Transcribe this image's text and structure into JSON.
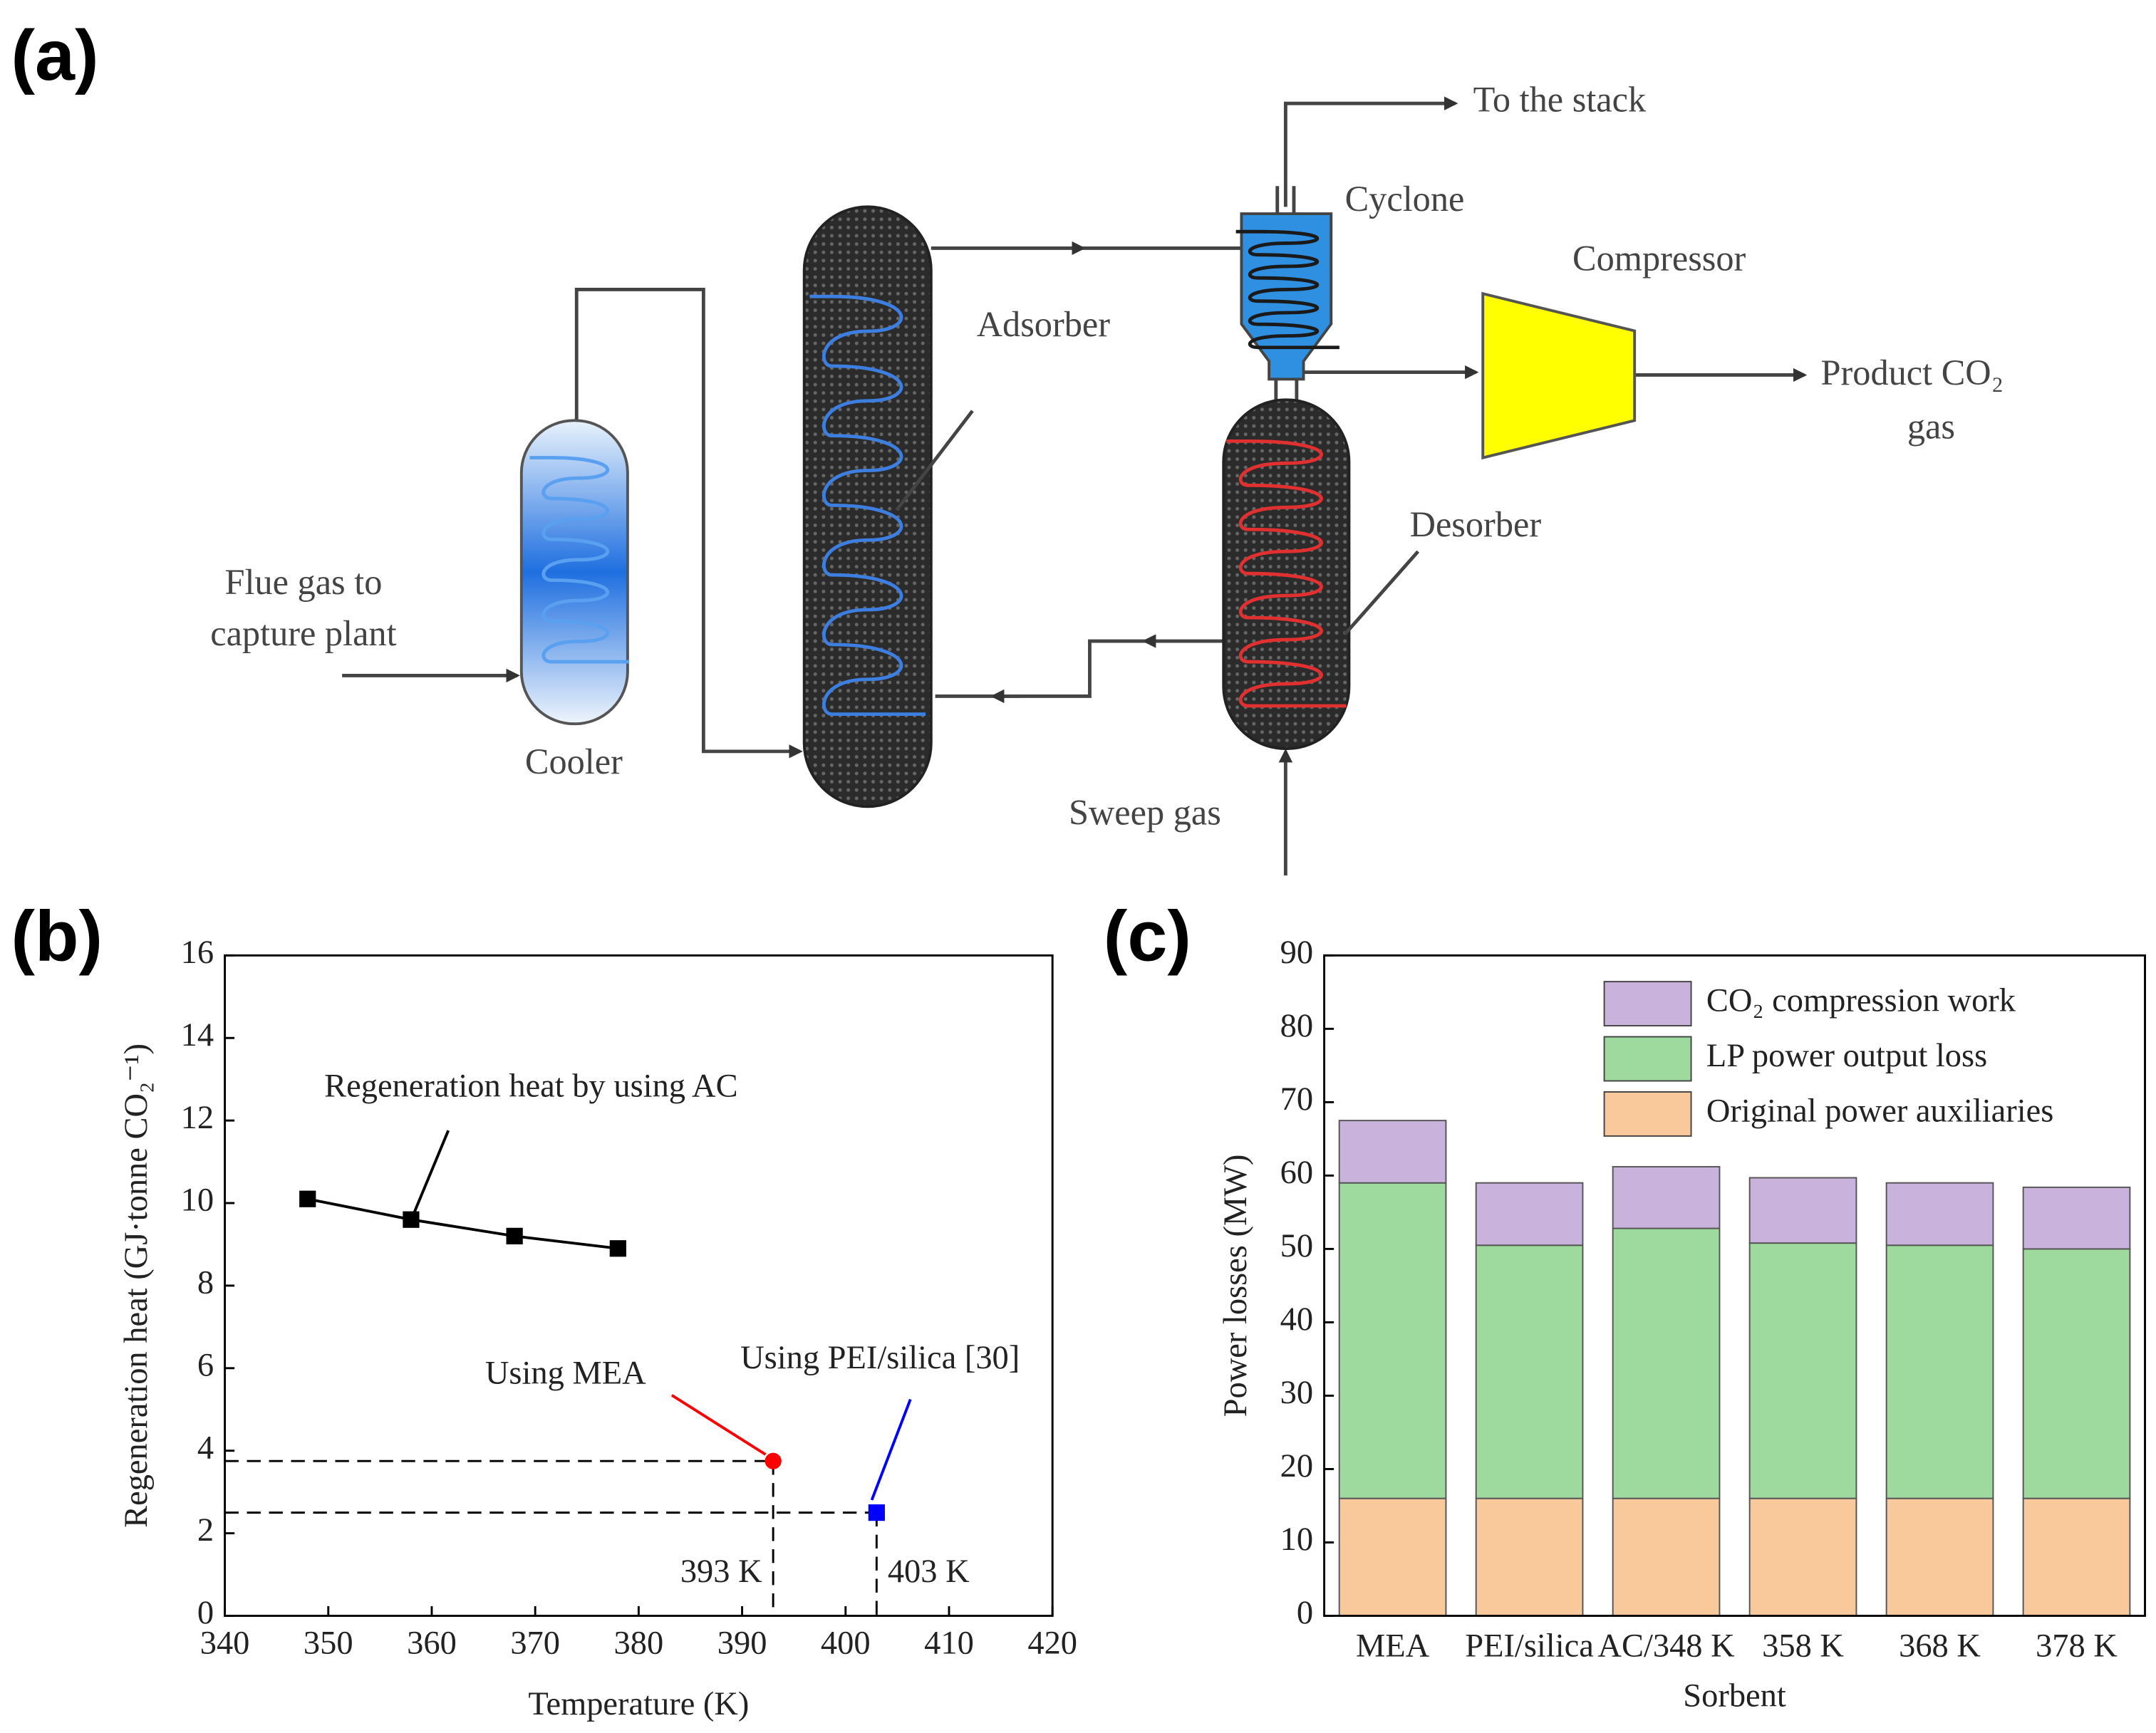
{
  "panels": {
    "a": "(a)",
    "b": "(b)",
    "c": "(c)"
  },
  "diagram": {
    "to_stack": "To the stack",
    "cyclone": "Cyclone",
    "compressor": "Compressor",
    "adsorber": "Adsorber",
    "product_line1": "Product CO₂",
    "product_line2": "gas",
    "desorber": "Desorber",
    "flue_line1": "Flue gas to",
    "flue_line2": "capture plant",
    "cooler": "Cooler",
    "sweep": "Sweep gas"
  },
  "chart_data": [
    {
      "type": "line",
      "xlabel": "Temperature (K)",
      "ylabel": "Regeneration heat (GJ·tonne CO₂⁻¹)",
      "xlim": [
        340,
        420
      ],
      "xticks": [
        340,
        350,
        360,
        370,
        380,
        390,
        400,
        410,
        420
      ],
      "ylim": [
        0,
        16
      ],
      "yticks": [
        0,
        2,
        4,
        6,
        8,
        10,
        12,
        14,
        16
      ],
      "series": [
        {
          "name": "Regeneration heat by using AC",
          "color": "#000000",
          "marker": "square",
          "x": [
            348,
            358,
            368,
            378
          ],
          "values": [
            10.1,
            9.6,
            9.2,
            8.9
          ]
        },
        {
          "name": "Using MEA",
          "color": "#ff0000",
          "marker": "circle",
          "x": [
            393
          ],
          "values": [
            3.75
          ]
        },
        {
          "name": "Using PEI/silica [30]",
          "color": "#0000ff",
          "marker": "square",
          "x": [
            403
          ],
          "values": [
            2.5
          ]
        }
      ],
      "annotations": [
        "393 K",
        "403 K"
      ]
    },
    {
      "type": "stacked_bar",
      "xlabel": "Sorbent",
      "ylabel": "Power losses (MW)",
      "categories": [
        "MEA",
        "PEI/silica",
        "AC/348 K",
        "358 K",
        "368 K",
        "378 K"
      ],
      "ylim": [
        0,
        90
      ],
      "yticks": [
        0,
        10,
        20,
        30,
        40,
        50,
        60,
        70,
        80,
        90
      ],
      "legend": "top-right",
      "series": [
        {
          "name": "Original power auxiliaries",
          "color": "#f9c89b",
          "values": [
            16,
            16,
            16,
            16,
            16,
            16
          ]
        },
        {
          "name": "LP power output loss",
          "color": "#9ed99e",
          "values": [
            43,
            34.5,
            36.8,
            34.8,
            34.5,
            34
          ]
        },
        {
          "name": "CO₂ compression work",
          "color": "#c9b3dc",
          "values": [
            8.5,
            8.5,
            8.4,
            8.9,
            8.5,
            8.4
          ]
        }
      ]
    }
  ]
}
